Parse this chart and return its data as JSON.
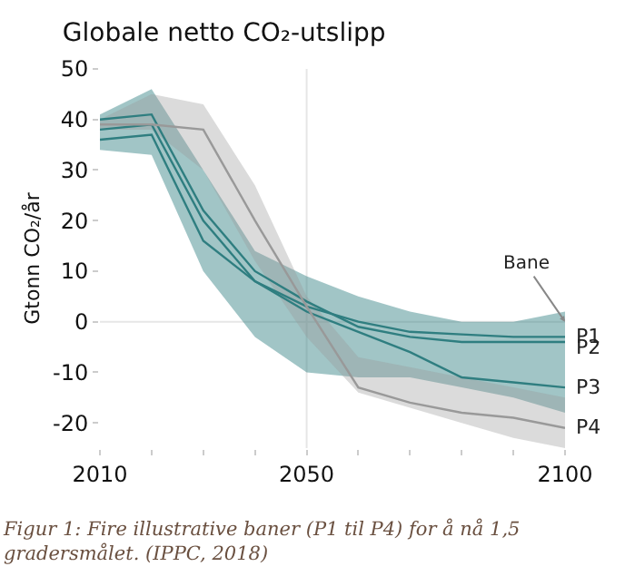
{
  "chart_data": {
    "type": "line",
    "title": "Globale netto CO₂-utslipp",
    "ylabel": "Gtonn CO₂/år",
    "legend_title": "Bane",
    "annotations": [
      "Figur 1: Fire illustrative baner (P1 til P4) for å nå 1,5 gradersmålet. (IPPC, 2018)"
    ],
    "x": [
      2010,
      2020,
      2030,
      2040,
      2050,
      2060,
      2070,
      2080,
      2090,
      2100
    ],
    "series": [
      {
        "name": "P1",
        "color": "#2f7e80",
        "values": [
          38,
          39,
          20,
          8,
          3,
          0,
          -2,
          -2.5,
          -3,
          -3
        ],
        "lower": [
          34,
          33,
          10,
          -3,
          -10,
          -11,
          -11,
          -13,
          -15,
          -18
        ],
        "upper": [
          41,
          46,
          30,
          14,
          9,
          5,
          2,
          0,
          0,
          2
        ]
      },
      {
        "name": "P2",
        "color": "#2f7e80",
        "values": [
          40,
          41,
          22,
          10,
          4,
          -1,
          -3,
          -4,
          -4,
          -4
        ]
      },
      {
        "name": "P3",
        "color": "#2f7e80",
        "values": [
          36,
          37,
          16,
          8,
          2,
          -2,
          -6,
          -11,
          -12,
          -13
        ]
      },
      {
        "name": "P4",
        "color": "#999999",
        "values": [
          39,
          39,
          38,
          20,
          3,
          -13,
          -16,
          -18,
          -19,
          -21
        ],
        "lower": [
          38,
          38,
          30,
          12,
          -3,
          -14,
          -17,
          -20,
          -23,
          -25
        ],
        "upper": [
          40,
          45,
          43,
          27,
          5,
          -7,
          -9,
          -11,
          -13,
          -15
        ]
      }
    ],
    "xlim": [
      2010,
      2100
    ],
    "xticks": [
      2010,
      {
        "value": 2020,
        "label": null
      },
      {
        "value": 2030,
        "label": null
      },
      {
        "value": 2040,
        "label": null
      },
      2050,
      {
        "value": 2060,
        "label": null
      },
      {
        "value": 2070,
        "label": null
      },
      {
        "value": 2080,
        "label": null
      },
      {
        "value": 2090,
        "label": null
      },
      2100
    ],
    "ylim": [
      -25,
      50
    ],
    "yticks": [
      -20,
      -10,
      0,
      10,
      20,
      30,
      40,
      50
    ],
    "ref_lines": [
      {
        "axis": "y",
        "value": 0,
        "color": "#e6e6e6"
      },
      {
        "axis": "x",
        "value": 2050,
        "color": "#e6e6e6"
      }
    ],
    "grid": false,
    "legend": false,
    "marker": "none",
    "line_style": "solid"
  }
}
